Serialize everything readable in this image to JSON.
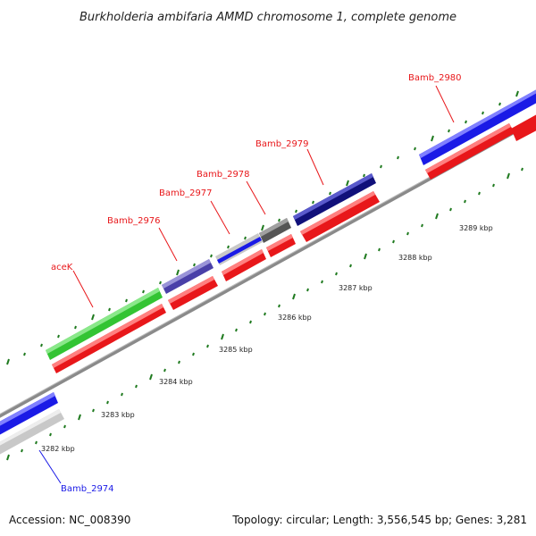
{
  "title": "Burkholderia ambifaria AMMD chromosome 1, complete genome",
  "footer": {
    "accession": "Accession: NC_008390",
    "summary": "Topology: circular; Length: 3,556,545 bp; Genes: 3,281"
  },
  "colors": {
    "forward_red": "#e8171a",
    "blue": "#1a1ae6",
    "green": "#33c433",
    "slate_blue": "#4a40a8",
    "navy": "#10107a",
    "dark_gray": "#555555",
    "light_gray": "#c8c8c8",
    "tick_green": "#1f7a1f",
    "backbone_gray": "#8a8a8a",
    "label_red": "#e8171a",
    "label_blue": "#1a1ae6"
  },
  "gene_labels": [
    {
      "name": "aceK",
      "color": "label_red"
    },
    {
      "name": "Bamb_2976",
      "color": "label_red"
    },
    {
      "name": "Bamb_2977",
      "color": "label_red"
    },
    {
      "name": "Bamb_2978",
      "color": "label_red"
    },
    {
      "name": "Bamb_2979",
      "color": "label_red"
    },
    {
      "name": "Bamb_2980",
      "color": "label_red"
    },
    {
      "name": "Bamb_2974",
      "color": "label_blue"
    }
  ],
  "kbp_labels": [
    "3282 kbp",
    "3283 kbp",
    "3284 kbp",
    "3285 kbp",
    "3286 kbp",
    "3287 kbp",
    "3288 kbp",
    "3289 kbp"
  ]
}
